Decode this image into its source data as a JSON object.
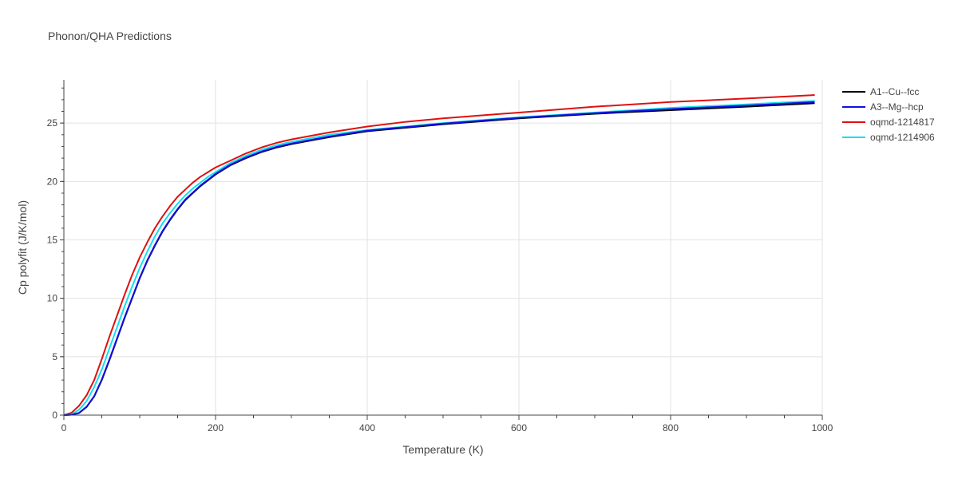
{
  "chart_data": {
    "type": "line",
    "title": "Phonon/QHA Predictions",
    "xlabel": "Temperature (K)",
    "ylabel": "Cp polyfit (J/K/mol)",
    "xlim": [
      0,
      1000
    ],
    "ylim": [
      0,
      28.7
    ],
    "xticks": [
      0,
      200,
      400,
      600,
      800,
      1000
    ],
    "yticks": [
      0,
      5,
      10,
      15,
      20,
      25
    ],
    "grid": true,
    "legend_position": "top-right",
    "series": [
      {
        "name": "A1--Cu--fcc",
        "color": "#000000",
        "x": [
          0,
          10,
          20,
          30,
          40,
          50,
          60,
          70,
          80,
          90,
          100,
          110,
          120,
          130,
          140,
          150,
          160,
          170,
          180,
          190,
          200,
          220,
          240,
          260,
          280,
          300,
          350,
          400,
          450,
          500,
          600,
          700,
          800,
          900,
          990
        ],
        "y": [
          0,
          0.03,
          0.18,
          0.7,
          1.6,
          3.0,
          4.7,
          6.5,
          8.3,
          10.0,
          11.7,
          13.2,
          14.5,
          15.7,
          16.7,
          17.6,
          18.4,
          19.0,
          19.6,
          20.1,
          20.6,
          21.4,
          22.0,
          22.5,
          22.9,
          23.2,
          23.8,
          24.3,
          24.6,
          24.9,
          25.4,
          25.8,
          26.1,
          26.4,
          26.7
        ]
      },
      {
        "name": "A3--Mg--hcp",
        "color": "#1010e0",
        "x": [
          0,
          10,
          20,
          30,
          40,
          50,
          60,
          70,
          80,
          90,
          100,
          110,
          120,
          130,
          140,
          150,
          160,
          170,
          180,
          190,
          200,
          220,
          240,
          260,
          280,
          300,
          350,
          400,
          450,
          500,
          600,
          700,
          800,
          900,
          990
        ],
        "y": [
          0,
          0.03,
          0.19,
          0.72,
          1.63,
          3.05,
          4.75,
          6.55,
          8.35,
          10.05,
          11.75,
          13.25,
          14.55,
          15.75,
          16.75,
          17.65,
          18.45,
          19.05,
          19.65,
          20.15,
          20.65,
          21.45,
          22.05,
          22.55,
          22.95,
          23.25,
          23.85,
          24.35,
          24.65,
          24.95,
          25.45,
          25.85,
          26.2,
          26.5,
          26.8
        ]
      },
      {
        "name": "oqmd-1214817",
        "color": "#e01010",
        "x": [
          0,
          10,
          20,
          30,
          40,
          50,
          60,
          70,
          80,
          90,
          100,
          110,
          120,
          130,
          140,
          150,
          160,
          170,
          180,
          190,
          200,
          220,
          240,
          260,
          280,
          300,
          350,
          400,
          450,
          500,
          600,
          700,
          800,
          900,
          990
        ],
        "y": [
          0,
          0.2,
          0.8,
          1.7,
          3.0,
          4.8,
          6.7,
          8.5,
          10.3,
          12.0,
          13.5,
          14.8,
          16.0,
          17.0,
          17.9,
          18.7,
          19.3,
          19.9,
          20.4,
          20.8,
          21.2,
          21.8,
          22.4,
          22.9,
          23.3,
          23.6,
          24.2,
          24.7,
          25.1,
          25.4,
          25.9,
          26.4,
          26.8,
          27.1,
          27.4
        ]
      },
      {
        "name": "oqmd-1214906",
        "color": "#10e0f0",
        "x": [
          0,
          10,
          20,
          30,
          40,
          50,
          60,
          70,
          80,
          90,
          100,
          110,
          120,
          130,
          140,
          150,
          160,
          170,
          180,
          190,
          200,
          220,
          240,
          260,
          280,
          300,
          350,
          400,
          450,
          500,
          600,
          700,
          800,
          900,
          990
        ],
        "y": [
          0,
          0.08,
          0.45,
          1.2,
          2.4,
          3.9,
          5.7,
          7.5,
          9.3,
          11.0,
          12.6,
          14.0,
          15.3,
          16.4,
          17.3,
          18.1,
          18.8,
          19.4,
          19.9,
          20.4,
          20.8,
          21.6,
          22.2,
          22.7,
          23.1,
          23.4,
          24.0,
          24.4,
          24.7,
          25.0,
          25.5,
          25.9,
          26.3,
          26.6,
          26.9
        ]
      }
    ]
  }
}
